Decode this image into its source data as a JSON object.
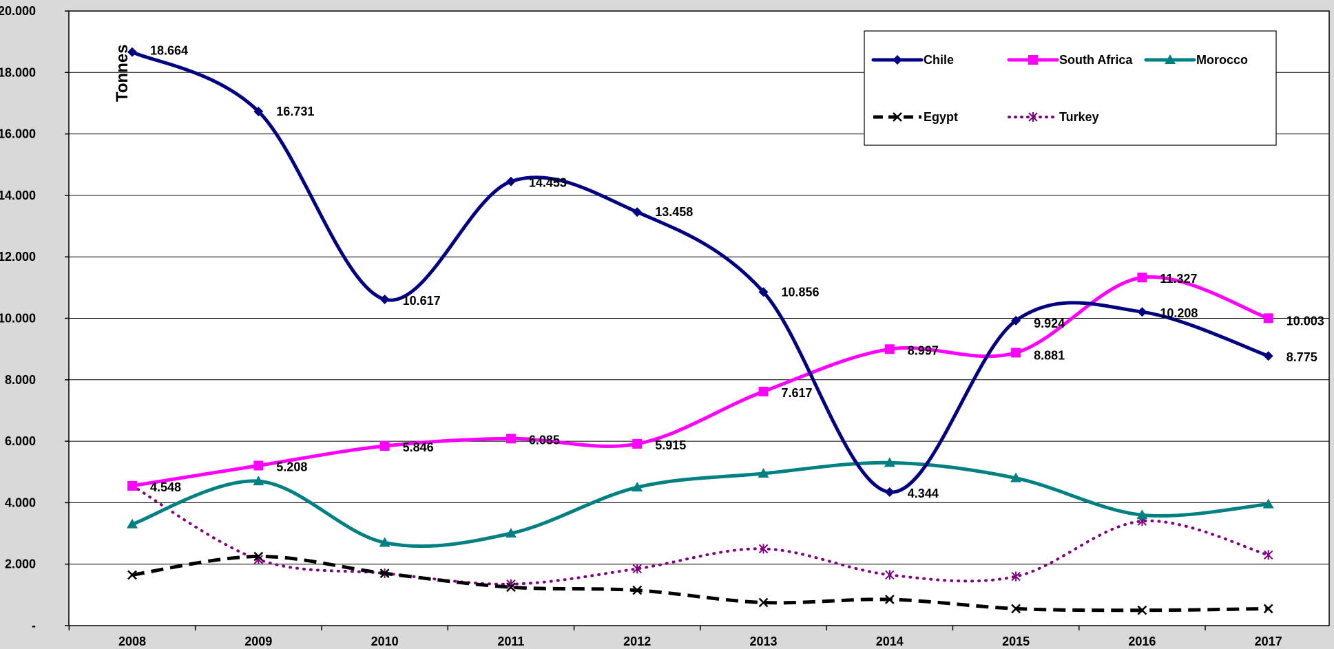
{
  "chart_data": {
    "type": "line",
    "title": "",
    "xlabel": "",
    "ylabel": "Tonnes",
    "categories": [
      "2008",
      "2009",
      "2010",
      "2011",
      "2012",
      "2013",
      "2014",
      "2015",
      "2016",
      "2017"
    ],
    "ylim": [
      0,
      20000
    ],
    "yticks": [
      {
        "value": 0,
        "label": "-"
      },
      {
        "value": 2000,
        "label": "2.000"
      },
      {
        "value": 4000,
        "label": "4.000"
      },
      {
        "value": 6000,
        "label": "6.000"
      },
      {
        "value": 8000,
        "label": "8.000"
      },
      {
        "value": 10000,
        "label": "10.000"
      },
      {
        "value": 12000,
        "label": "12.000"
      },
      {
        "value": 14000,
        "label": "14.000"
      },
      {
        "value": 16000,
        "label": "16.000"
      },
      {
        "value": 18000,
        "label": "18.000"
      },
      {
        "value": 20000,
        "label": "20.000"
      }
    ],
    "grid": "horizontal",
    "legend_position": "top-right",
    "series": [
      {
        "name": "Chile",
        "color": "#000080",
        "line": "solid",
        "marker": "diamond",
        "labeled": true,
        "values": [
          18664,
          16731,
          10617,
          14453,
          13458,
          10856,
          4344,
          9924,
          10208,
          8775
        ],
        "labels": [
          "18.664",
          "16.731",
          "10.617",
          "14.453",
          "13.458",
          "10.856",
          "4.344",
          "9.924",
          "10.208",
          "8.775"
        ]
      },
      {
        "name": "South Africa",
        "color": "#ff00ff",
        "line": "solid",
        "marker": "square",
        "labeled": true,
        "values": [
          4548,
          5208,
          5846,
          6085,
          5915,
          7617,
          8997,
          8881,
          11327,
          10003
        ],
        "labels": [
          "4.548",
          "5.208",
          "5.846",
          "6.085",
          "5.915",
          "7.617",
          "8.997",
          "8.881",
          "11.327",
          "10.003"
        ]
      },
      {
        "name": "Morocco",
        "color": "#008080",
        "line": "solid",
        "marker": "triangle",
        "labeled": false,
        "values": [
          3300,
          4700,
          2700,
          3000,
          4500,
          4950,
          5300,
          4800,
          3600,
          3950
        ]
      },
      {
        "name": "Egypt",
        "color": "#000000",
        "line": "dashed",
        "marker": "x",
        "labeled": false,
        "values": [
          1650,
          2250,
          1700,
          1250,
          1150,
          750,
          850,
          550,
          500,
          550
        ]
      },
      {
        "name": "Turkey",
        "color": "#800080",
        "line": "dotted",
        "marker": "star",
        "labeled": false,
        "values": [
          4550,
          2150,
          1700,
          1350,
          1850,
          2500,
          1650,
          1600,
          3400,
          2300
        ]
      }
    ]
  }
}
